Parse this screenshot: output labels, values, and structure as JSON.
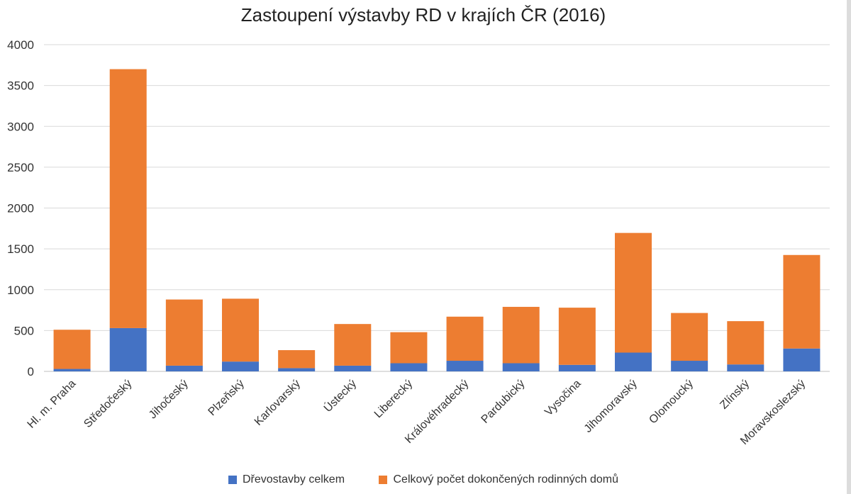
{
  "chart_data": {
    "type": "bar",
    "stacked": true,
    "title": "Zastoupení výstavby RD v krajích ČR (2016)",
    "xlabel": "",
    "ylabel": "",
    "ylim": [
      0,
      4000
    ],
    "yticks": [
      0,
      500,
      1000,
      1500,
      2000,
      2500,
      3000,
      3500,
      4000
    ],
    "grid": true,
    "legend_position": "bottom",
    "categories": [
      "Hl. m. Praha",
      "Středočeský",
      "Jihočeský",
      "Plzeňský",
      "Karlovarský",
      "Ústecký",
      "Liberecký",
      "Královéhradecký",
      "Pardubický",
      "Vysočina",
      "Jihomoravský",
      "Olomoucký",
      "Zlínský",
      "Moravskoslezský"
    ],
    "series": [
      {
        "name": "Dřevostavby celkem",
        "color": "#4472C4",
        "values": [
          30,
          530,
          70,
          120,
          40,
          70,
          100,
          130,
          100,
          80,
          230,
          130,
          85,
          280
        ]
      },
      {
        "name": "Celkový počet dokončených rodinných domů",
        "color": "#ED7D31",
        "values": [
          480,
          3170,
          810,
          770,
          220,
          510,
          380,
          540,
          690,
          700,
          1465,
          585,
          530,
          1145
        ]
      }
    ]
  }
}
